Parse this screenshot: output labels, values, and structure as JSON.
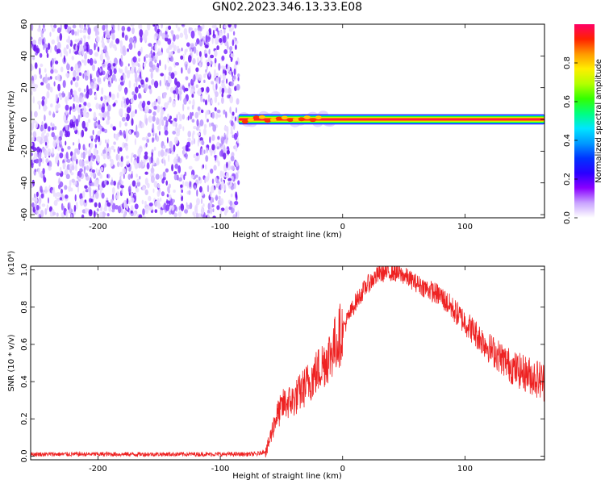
{
  "title": "GN02.2023.346.13.33.E08",
  "chart_data": [
    {
      "type": "heatmap",
      "xlabel": "Height of straight line (km)",
      "ylabel": "Frequency (Hz)",
      "xlim": [
        -255,
        165
      ],
      "ylim": [
        -62,
        60
      ],
      "x_ticks": [
        -200,
        -100,
        0,
        100
      ],
      "x_tick_labels": [
        "-200",
        "-100",
        "0",
        "100"
      ],
      "y_ticks": [
        -60,
        -40,
        -20,
        0,
        20,
        40,
        60
      ],
      "y_tick_labels": [
        "-60",
        "-40",
        "-20",
        "0",
        "20",
        "40",
        "60"
      ],
      "regions": [
        {
          "kind": "noise",
          "x_range": [
            -255,
            -85
          ],
          "y_range": [
            -62,
            60
          ],
          "amplitude_range": [
            0.0,
            0.25
          ]
        },
        {
          "kind": "signal",
          "x_range": [
            -85,
            165
          ],
          "center_freq_hz": 0,
          "half_width_hz": 2,
          "peak_amplitude": 1.0
        }
      ],
      "colorbar": {
        "label": "Normalized spectral amplitude",
        "range": [
          0,
          1
        ],
        "ticks": [
          0.0,
          0.2,
          0.4,
          0.6,
          0.8
        ],
        "tick_labels": [
          "0.0",
          "0.2",
          "0.4",
          "0.6",
          "0.8"
        ],
        "colors": [
          "#ffffff",
          "#c9a3ff",
          "#8a00ff",
          "#2a00ff",
          "#0033ff",
          "#0099ff",
          "#00e5ff",
          "#00ff80",
          "#33ff00",
          "#b3ff00",
          "#ffee00",
          "#ff9900",
          "#ff2200",
          "#ff0066"
        ]
      }
    },
    {
      "type": "line",
      "xlabel": "Height of straight line (km)",
      "ylabel": "SNR (10 * v/v)",
      "y_multiplier": "(x10⁴)",
      "xlim": [
        -255,
        165
      ],
      "ylim": [
        -0.02,
        1.02
      ],
      "x_ticks": [
        -200,
        -100,
        0,
        100
      ],
      "x_tick_labels": [
        "-200",
        "-100",
        "0",
        "100"
      ],
      "y_ticks": [
        0.0,
        0.2,
        0.4,
        0.6,
        0.8,
        1.0
      ],
      "y_tick_labels": [
        "0.0",
        "0.2",
        "0.4",
        "0.6",
        "0.8",
        "1.0"
      ],
      "color": "#ee2222",
      "series": [
        {
          "x": [
            -255,
            -200,
            -150,
            -100,
            -70,
            -62,
            -55,
            -48,
            -40,
            -30,
            -20,
            -10,
            0,
            10,
            20,
            30,
            40,
            50,
            60,
            80,
            100,
            120,
            140,
            165
          ],
          "values": [
            0.01,
            0.01,
            0.01,
            0.01,
            0.01,
            0.03,
            0.2,
            0.28,
            0.3,
            0.38,
            0.46,
            0.55,
            0.68,
            0.82,
            0.92,
            0.98,
            0.99,
            0.97,
            0.93,
            0.86,
            0.72,
            0.58,
            0.47,
            0.4
          ]
        }
      ]
    }
  ]
}
